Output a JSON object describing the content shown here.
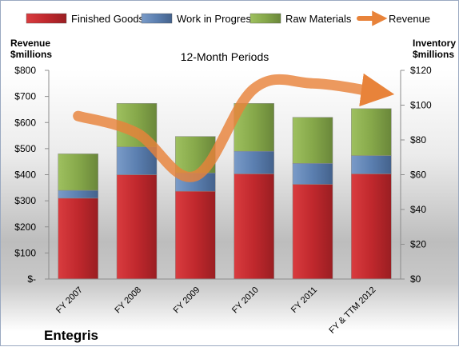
{
  "chart_data": {
    "type": "bar",
    "title": "12-Month Periods",
    "company": "Entegris",
    "categories": [
      "FY 2007",
      "FY 2008",
      "FY 2009",
      "FY 2010",
      "FY 2011",
      "FY & TTM 2012"
    ],
    "y_left": {
      "label_line1": "Revenue",
      "label_line2": "$millions",
      "range": [
        0,
        800
      ],
      "ticks": [
        0,
        100,
        200,
        300,
        400,
        500,
        600,
        700,
        800
      ],
      "tick_labels": [
        "$-",
        "$100",
        "$200",
        "$300",
        "$400",
        "$500",
        "$600",
        "$700",
        "$800"
      ]
    },
    "y_right": {
      "label_line1": "Inventory",
      "label_line2": "$millions",
      "range": [
        0,
        120
      ],
      "ticks": [
        0,
        20,
        40,
        60,
        80,
        100,
        120
      ],
      "tick_labels": [
        "$0",
        "$20",
        "$40",
        "$60",
        "$80",
        "$100",
        "$120"
      ]
    },
    "stacked_series": [
      {
        "name": "Finished Goods",
        "color": "#c0282d",
        "values": [
          46.5,
          60,
          50.5,
          60.5,
          54.5,
          60.5
        ]
      },
      {
        "name": "Work in Progress",
        "color": "#5b7fb0",
        "values": [
          4.5,
          16,
          10.5,
          13,
          12,
          10.5
        ]
      },
      {
        "name": "Raw Materials",
        "color": "#86a84a",
        "values": [
          21,
          25,
          21,
          27.5,
          26.5,
          27
        ]
      }
    ],
    "line_series": {
      "name": "Revenue",
      "color": "#e8833a",
      "axis": "left",
      "values": [
        625,
        560,
        395,
        730,
        750,
        720
      ]
    },
    "legend_position": "top",
    "grid": false
  }
}
